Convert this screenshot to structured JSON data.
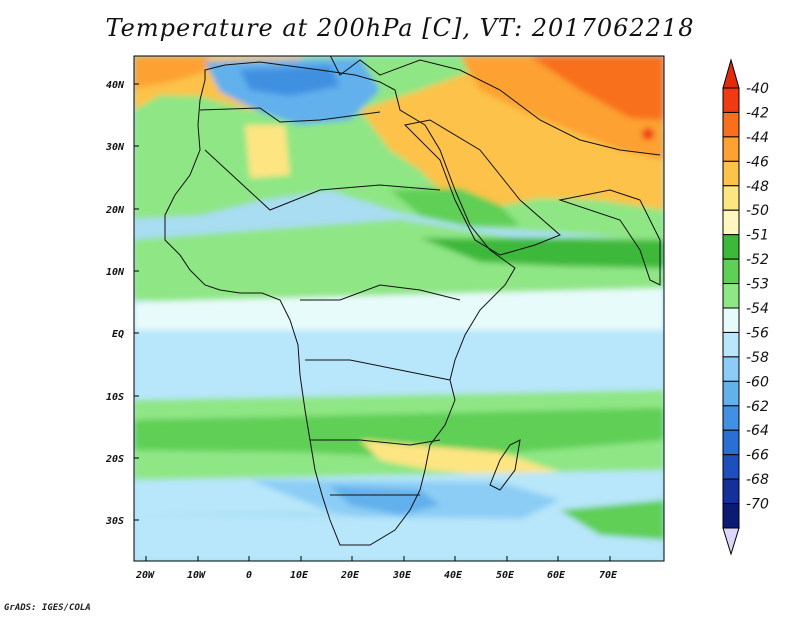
{
  "title": "Temperature at 200hPa [C], VT: 2017062218",
  "credit": "GrADS: IGES/COLA",
  "map": {
    "projection": "lat-lon",
    "lon_range": [
      -22,
      79
    ],
    "lat_range": [
      -37,
      45
    ],
    "lat_ticks": [
      "40N",
      "30N",
      "20N",
      "10N",
      "EQ",
      "10S",
      "20S",
      "30S"
    ],
    "lon_ticks": [
      "20W",
      "10W",
      "0",
      "10E",
      "20E",
      "30E",
      "40E",
      "50E",
      "60E",
      "70E"
    ],
    "background": "#a8ddf2"
  },
  "colorbar": {
    "labels": [
      "-40",
      "-42",
      "-44",
      "-46",
      "-48",
      "-50",
      "-51",
      "-52",
      "-53",
      "-54",
      "-56",
      "-58",
      "-60",
      "-62",
      "-64",
      "-66",
      "-68",
      "-70"
    ],
    "colors": [
      "#f03a12",
      "#f8701e",
      "#fca132",
      "#fcc24a",
      "#fde582",
      "#fff7c0",
      "#3cb83a",
      "#5fcf56",
      "#8fe684",
      "#e8fbfb",
      "#b8e6fa",
      "#8ccdf5",
      "#62b0ec",
      "#4190e2",
      "#2a6fd3",
      "#1f4fbc",
      "#16309a",
      "#0b1a72"
    ],
    "top_arrow_color": "#e22a0c",
    "bottom_arrow_color": "#dcd6fa"
  }
}
